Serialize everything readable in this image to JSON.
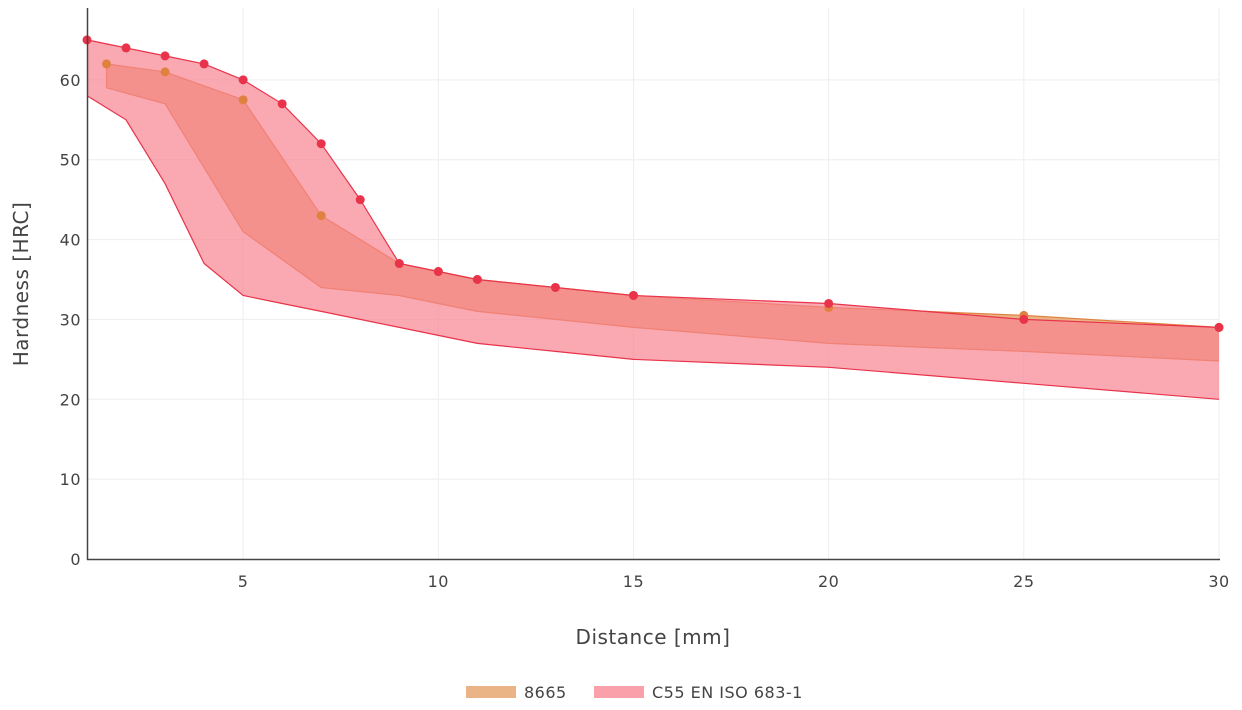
{
  "chart_data": {
    "type": "area",
    "title": "",
    "xlabel": "Distance [mm]",
    "ylabel": "Hardness [HRC]",
    "xlim": [
      1,
      30
    ],
    "ylim": [
      0,
      70
    ],
    "x_ticks": [
      5,
      10,
      15,
      20,
      25,
      30
    ],
    "y_ticks": [
      0,
      10,
      20,
      30,
      40,
      50,
      60
    ],
    "grid": true,
    "legend_position": "bottom-center",
    "series": [
      {
        "name": "8665",
        "fill_color": "#e8a772",
        "line_color": "#e0823f",
        "marker_color": "#e0823f",
        "max": {
          "x": [
            1.5,
            3,
            5,
            7,
            9,
            10,
            11,
            13,
            15,
            20,
            25,
            30
          ],
          "y": [
            62,
            61,
            57.5,
            43,
            37,
            36,
            35,
            34,
            33,
            31.5,
            30.5,
            29
          ]
        },
        "min": {
          "x": [
            1.5,
            3,
            5,
            7,
            9,
            10,
            11,
            13,
            15,
            20,
            25,
            30
          ],
          "y": [
            59,
            57,
            41,
            34,
            33,
            32,
            31,
            30,
            29,
            27,
            26,
            24.8
          ]
        },
        "markers_on": "max"
      },
      {
        "name": "C55 EN ISO 683-1",
        "fill_color": "#f7808f",
        "line_color": "#e8334a",
        "marker_color": "#e8334a",
        "max": {
          "x": [
            1,
            2,
            3,
            4,
            5,
            6,
            7,
            8,
            9,
            10,
            11,
            13,
            15,
            20,
            25,
            30
          ],
          "y": [
            65,
            64,
            63,
            62,
            60,
            57,
            52,
            45,
            37,
            36,
            35,
            34,
            33,
            32,
            30,
            29
          ]
        },
        "min": {
          "x": [
            1,
            2,
            3,
            4,
            5,
            6,
            7,
            8,
            9,
            10,
            11,
            13,
            15,
            20,
            25,
            30
          ],
          "y": [
            58,
            55,
            47,
            37,
            33,
            32,
            31,
            30,
            29,
            28,
            27,
            26,
            25,
            24,
            22,
            20
          ]
        },
        "markers_on": "max"
      }
    ]
  }
}
